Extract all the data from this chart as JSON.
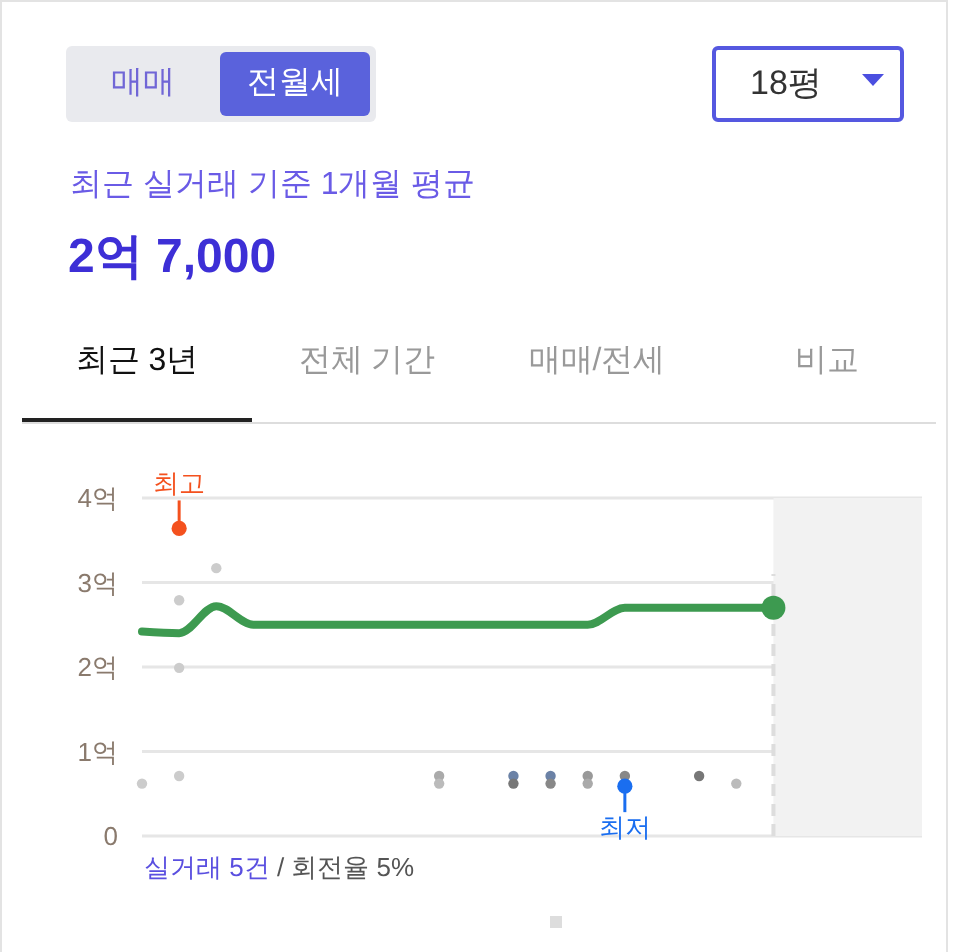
{
  "chart_data": {
    "type": "line",
    "title": "최근 실거래 기준 1개월 평균",
    "subtitle": "2억 7,000",
    "categories": [
      null,
      null,
      null,
      null,
      null,
      null,
      null,
      null,
      null,
      null,
      null,
      null,
      null,
      null,
      null,
      null,
      null,
      null,
      null,
      null,
      null,
      null
    ],
    "series": [
      {
        "color": "#3d9a50",
        "values": [
          2.42,
          2.4,
          2.72,
          2.5,
          2.5,
          2.5,
          2.5,
          2.5,
          2.5,
          2.5,
          2.5,
          2.5,
          2.5,
          2.7,
          2.7,
          2.7,
          2.7,
          2.7,
          null,
          null,
          null,
          null
        ]
      },
      {
        "type": "scatter",
        "colors": [
          "#cccccc",
          "#cccccc",
          "#cccccc",
          null,
          null,
          null,
          null,
          null,
          "#aaaaaa",
          null,
          "#6b82a6",
          "#6b82a6",
          "#999999",
          "#888888",
          null,
          "#777777",
          "#bbbbbb",
          null,
          null,
          null,
          null,
          null
        ],
        "values": [
          0.62,
          2.79,
          3.17,
          null,
          null,
          null,
          null,
          null,
          0.71,
          null,
          0.71,
          0.71,
          0.71,
          0.71,
          null,
          0.71,
          0.62,
          null,
          null,
          null,
          null,
          null
        ]
      },
      {
        "type": "scatter",
        "colors": [
          null,
          "#cccccc",
          null,
          null,
          null,
          null,
          null,
          null,
          "#bbbbbb",
          null,
          "#777777",
          "#888888",
          "#aaaaaa",
          null,
          null,
          null,
          null,
          null,
          null,
          null,
          null,
          null
        ],
        "values": [
          null,
          1.99,
          null,
          null,
          null,
          null,
          null,
          null,
          0.62,
          null,
          0.62,
          0.62,
          0.62,
          null,
          null,
          null,
          null,
          null,
          null,
          null,
          null,
          null
        ]
      },
      {
        "type": "scatter",
        "colors": [
          null,
          "#cccccc",
          null,
          null,
          null,
          null,
          null,
          null,
          null,
          null,
          null,
          null,
          null,
          null,
          null,
          null,
          null,
          null,
          null,
          null,
          null,
          null
        ],
        "values": [
          null,
          0.71,
          null,
          null,
          null,
          null,
          null,
          null,
          null,
          null,
          null,
          null,
          null,
          null,
          null,
          null,
          null,
          null,
          null,
          null,
          null,
          null
        ]
      },
      {
        "type": "scatter",
        "name": "최고",
        "color": "#f4511e",
        "values": [
          null,
          3.64,
          null,
          null,
          null,
          null,
          null,
          null,
          null,
          null,
          null,
          null,
          null,
          null,
          null,
          null,
          null,
          null,
          null,
          null,
          null,
          null
        ]
      },
      {
        "type": "scatter",
        "name": "최저",
        "color": "#1a6ef0",
        "values": [
          null,
          null,
          null,
          null,
          null,
          null,
          null,
          null,
          null,
          null,
          null,
          null,
          null,
          0.59,
          null,
          null,
          null,
          null,
          null,
          null,
          null,
          null
        ]
      },
      {
        "type": "scatter",
        "color": "#3d9a50",
        "values": [
          null,
          null,
          null,
          null,
          null,
          null,
          null,
          null,
          null,
          null,
          null,
          null,
          null,
          null,
          null,
          null,
          null,
          2.7,
          null,
          null,
          null,
          null
        ]
      }
    ],
    "ylim": [
      0,
      4
    ],
    "yticks": [
      0,
      {
        "value": 1,
        "label": "1억"
      },
      {
        "value": 2,
        "label": "2억"
      },
      {
        "value": 3,
        "label": "3억"
      },
      {
        "value": 4,
        "label": "4억"
      }
    ],
    "grid": "y",
    "annotations": [
      "매매",
      "전월세",
      "18평",
      "최근 3년",
      "전체 기간",
      "매매/전세",
      "비교",
      "실거래 5건",
      "/ 회전율 5%"
    ]
  }
}
